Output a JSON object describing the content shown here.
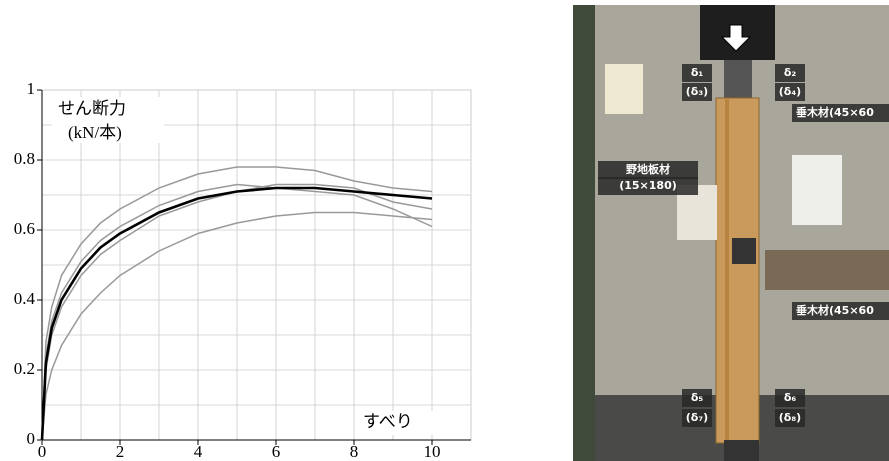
{
  "chart_data": {
    "type": "line",
    "y_label": "せん断力",
    "y_unit": "(kN/本)",
    "x_label": "すべり",
    "x": [
      0,
      0.1,
      0.25,
      0.5,
      1,
      1.5,
      2,
      3,
      4,
      5,
      6,
      7,
      8,
      9,
      10
    ],
    "series": [
      {
        "color": "#999999",
        "values": [
          0,
          0.28,
          0.38,
          0.47,
          0.56,
          0.62,
          0.66,
          0.72,
          0.76,
          0.78,
          0.78,
          0.77,
          0.74,
          0.72,
          0.71
        ]
      },
      {
        "color": "#999999",
        "values": [
          0,
          0.13,
          0.2,
          0.27,
          0.36,
          0.42,
          0.47,
          0.54,
          0.59,
          0.62,
          0.64,
          0.65,
          0.65,
          0.64,
          0.63
        ]
      },
      {
        "color": "#999999",
        "values": [
          0,
          0.2,
          0.3,
          0.38,
          0.47,
          0.53,
          0.57,
          0.64,
          0.68,
          0.71,
          0.73,
          0.73,
          0.72,
          0.68,
          0.66
        ]
      },
      {
        "color": "#999999",
        "values": [
          0,
          0.24,
          0.34,
          0.42,
          0.51,
          0.57,
          0.61,
          0.67,
          0.71,
          0.73,
          0.72,
          0.71,
          0.7,
          0.66,
          0.61
        ]
      },
      {
        "color": "#000000",
        "values": [
          0,
          0.22,
          0.32,
          0.4,
          0.49,
          0.55,
          0.59,
          0.65,
          0.69,
          0.71,
          0.72,
          0.72,
          0.71,
          0.7,
          0.69
        ]
      }
    ],
    "xlim": [
      0,
      11
    ],
    "ylim": [
      0,
      1
    ],
    "xticks": [
      0,
      2,
      4,
      6,
      8,
      10
    ],
    "yticks": [
      0,
      0.2,
      0.4,
      0.6,
      0.8,
      1
    ],
    "grid": true
  },
  "photo": {
    "labels": [
      "δ₁",
      "(δ₃)",
      "δ₂",
      "(δ₄)",
      "垂木材(45×60",
      "野地板材",
      "(15×180)",
      "垂木材(45×60",
      "δ₅",
      "(δ₇)",
      "δ₆",
      "(δ₈)"
    ]
  }
}
